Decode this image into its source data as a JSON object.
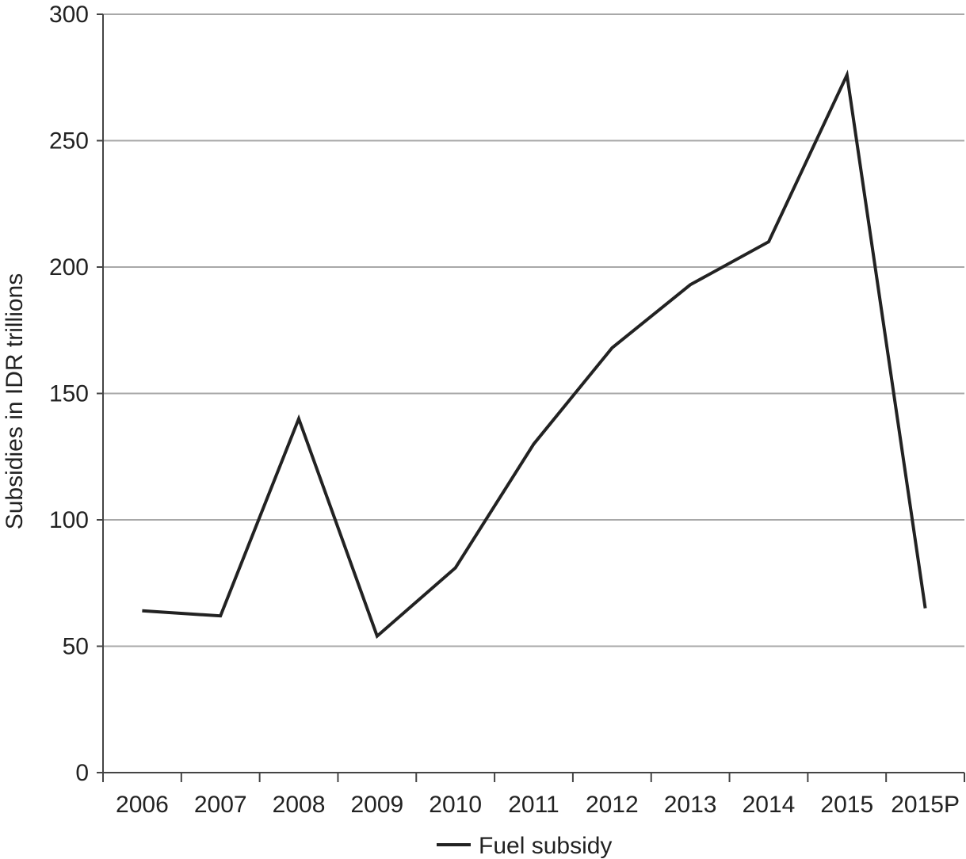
{
  "chart_data": {
    "type": "line",
    "title": "",
    "xlabel": "",
    "ylabel": "Subsidies in IDR trillions",
    "categories": [
      "2006",
      "2007",
      "2008",
      "2009",
      "2010",
      "2011",
      "2012",
      "2013",
      "2014",
      "2015",
      "2015P"
    ],
    "series": [
      {
        "name": "Fuel subsidy",
        "values": [
          64,
          62,
          140,
          54,
          81,
          130,
          168,
          193,
          210,
          276,
          65
        ],
        "color": "#222222"
      }
    ],
    "ylim": [
      0,
      300
    ],
    "yticks": [
      0,
      50,
      100,
      150,
      200,
      250,
      300
    ],
    "grid": true,
    "legend_position": "bottom-center"
  }
}
